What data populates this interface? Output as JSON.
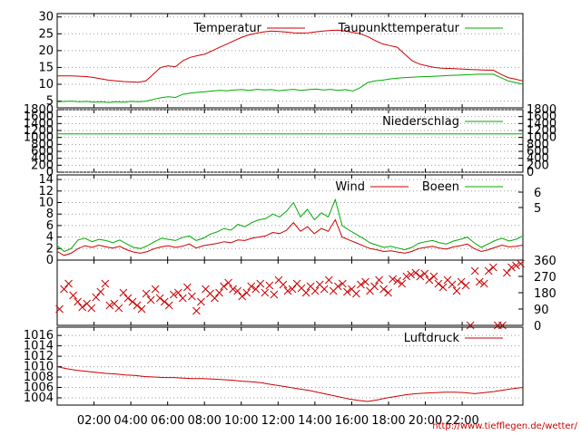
{
  "chart_data": [
    {
      "type": "line",
      "series": [
        {
          "name": "Temperatur",
          "color": "#cc0000",
          "values": [
            12.5,
            12.5,
            12.5,
            12.4,
            12.3,
            12,
            11.6,
            11.2,
            11,
            10.8,
            10.7,
            10.6,
            11,
            13,
            15,
            15.5,
            15.2,
            17,
            18,
            18.5,
            19,
            20,
            21,
            22,
            23,
            24,
            24.7,
            25.2,
            25.6,
            25.8,
            25.7,
            25.5,
            25.3,
            25.2,
            25.3,
            25.6,
            25.8,
            26,
            26.1,
            25.8,
            25.4,
            25,
            24.2,
            23,
            22,
            21.5,
            21,
            19,
            17,
            16,
            15.5,
            15,
            14.8,
            14.7,
            14.6,
            14.5,
            14.4,
            14.3,
            14.2,
            14.2,
            13,
            12,
            11.5,
            11
          ]
        },
        {
          "name": "Taupunkttemperatur",
          "color": "#00aa00",
          "values": [
            4.8,
            4.9,
            5,
            4.8,
            4.9,
            4.7,
            4.8,
            4.6,
            4.8,
            4.7,
            4.9,
            4.8,
            5,
            5.5,
            6,
            6.3,
            6.1,
            7,
            7.4,
            7.6,
            7.8,
            8,
            8.2,
            8.1,
            8.3,
            8.4,
            8.2,
            8.5,
            8.3,
            8.4,
            8.1,
            8.3,
            8.5,
            8.2,
            8.4,
            8.6,
            8.3,
            8.5,
            8.2,
            8.4,
            8,
            9,
            10.5,
            11,
            11.2,
            11.6,
            11.8,
            12,
            12.1,
            12.2,
            12.3,
            12.4,
            12.5,
            12.6,
            12.7,
            12.8,
            12.9,
            13,
            13,
            13,
            12,
            11,
            10.5,
            10
          ]
        }
      ],
      "ylim": [
        3,
        31
      ],
      "yticks": [
        5,
        10,
        15,
        20,
        25,
        30
      ]
    },
    {
      "type": "line",
      "series": [
        {
          "name": "Niederschlag",
          "color": "#00aa00",
          "values": [
            1100,
            1100
          ]
        }
      ],
      "ylim": [
        0,
        1800
      ],
      "yticks": [
        0,
        200,
        400,
        600,
        800,
        1000,
        1200,
        1400,
        1600,
        1800
      ]
    },
    {
      "type": "line",
      "series": [
        {
          "name": "Wind",
          "color": "#cc0000",
          "values": [
            1.5,
            0.8,
            1.2,
            2,
            2.5,
            2.2,
            2.6,
            2.3,
            2.1,
            2.4,
            1.8,
            1.4,
            1.2,
            1.5,
            2,
            2.3,
            2.5,
            2.2,
            2.4,
            2.8,
            2.1,
            2.5,
            2.7,
            2.9,
            3.2,
            3,
            3.5,
            3.4,
            3.8,
            4,
            4.2,
            4.8,
            4.6,
            5.2,
            6.5,
            5,
            5.8,
            4.6,
            5.5,
            5,
            7,
            4,
            3.5,
            3,
            2.5,
            2,
            1.8,
            1.5,
            1.6,
            1.4,
            1.2,
            1.5,
            2,
            2.2,
            2.4,
            2.1,
            1.9,
            2.3,
            2.5,
            2.8,
            2,
            1.5,
            1.8,
            2.2,
            2.6,
            2.3,
            2.4,
            2.6
          ]
        },
        {
          "name": "Boeen",
          "color": "#00aa00",
          "values": [
            2.5,
            1.5,
            2,
            3.5,
            3.8,
            3.2,
            3.6,
            3.4,
            3,
            3.5,
            2.8,
            2.2,
            2,
            2.5,
            3.2,
            3.8,
            3.6,
            3.4,
            3.9,
            4.2,
            3.4,
            3.8,
            4.5,
            4.9,
            5.5,
            5.2,
            6.2,
            5.8,
            6.5,
            7,
            7.2,
            8,
            7.5,
            8.5,
            10,
            7.5,
            8.8,
            7,
            8.2,
            7.5,
            10.5,
            6,
            5.2,
            4.5,
            3.8,
            3,
            2.6,
            2.2,
            2.4,
            2.1,
            1.8,
            2.2,
            2.9,
            3.2,
            3.4,
            3,
            2.8,
            3.3,
            3.6,
            4,
            3,
            2.2,
            2.8,
            3.4,
            3.8,
            3.3,
            3.6,
            4.2
          ]
        }
      ],
      "ylim": [
        0,
        14.8
      ],
      "yticks": [
        0,
        2,
        4,
        6,
        8,
        10,
        12,
        14
      ],
      "y2ticks": [
        5,
        6
      ]
    },
    {
      "type": "scatter",
      "series": [
        {
          "name": "",
          "color": "#cc0000",
          "marker": "x",
          "values": [
            90,
            200,
            230,
            165,
            130,
            100,
            120,
            95,
            155,
            185,
            230,
            110,
            120,
            95,
            180,
            150,
            130,
            110,
            90,
            175,
            140,
            200,
            150,
            130,
            110,
            170,
            180,
            150,
            210,
            160,
            80,
            130,
            200,
            175,
            150,
            180,
            215,
            235,
            200,
            190,
            160,
            180,
            215,
            200,
            230,
            180,
            220,
            170,
            250,
            225,
            190,
            200,
            230,
            205,
            180,
            215,
            190,
            225,
            200,
            250,
            190,
            215,
            230,
            185,
            200,
            175,
            225,
            240,
            190,
            215,
            250,
            200,
            180,
            255,
            245,
            230,
            270,
            280,
            290,
            270,
            285,
            250,
            270,
            230,
            210,
            250,
            225,
            190,
            240,
            220,
            0,
            300,
            240,
            230,
            300,
            320,
            0,
            0,
            290,
            320,
            330,
            340
          ]
        }
      ],
      "ylim": [
        0,
        360
      ],
      "y2ticks": [
        0,
        90,
        180,
        270,
        360
      ]
    },
    {
      "type": "line",
      "series": [
        {
          "name": "Luftdruck",
          "color": "#cc0000",
          "values": [
            1010,
            1009.6,
            1009.3,
            1009.1,
            1008.9,
            1008.7,
            1008.6,
            1008.4,
            1008.3,
            1008.1,
            1008,
            1007.9,
            1007.9,
            1007.8,
            1007.7,
            1007.7,
            1007.6,
            1007.5,
            1007.4,
            1007.2,
            1007.1,
            1006.9,
            1006.6,
            1006.3,
            1006,
            1005.7,
            1005.4,
            1005,
            1004.6,
            1004.2,
            1003.8,
            1003.5,
            1003.3,
            1003.6,
            1004,
            1004.3,
            1004.6,
            1004.8,
            1004.9,
            1005,
            1005.1,
            1005.1,
            1005,
            1004.8,
            1005,
            1005.2,
            1005.5,
            1005.8,
            1006
          ]
        }
      ],
      "ylim": [
        1002.6,
        1017.6
      ],
      "yticks": [
        1004,
        1006,
        1008,
        1010,
        1012,
        1014,
        1016
      ]
    }
  ],
  "x_axis": {
    "tick_labels": [
      "02:00",
      "04:00",
      "06:00",
      "08:00",
      "10:00",
      "12:00",
      "14:00",
      "16:00",
      "18:00",
      "20:00",
      "22:00"
    ],
    "range_hours": [
      0,
      25.3
    ]
  },
  "source": "http://www.tiefflegen.de/wetter/"
}
